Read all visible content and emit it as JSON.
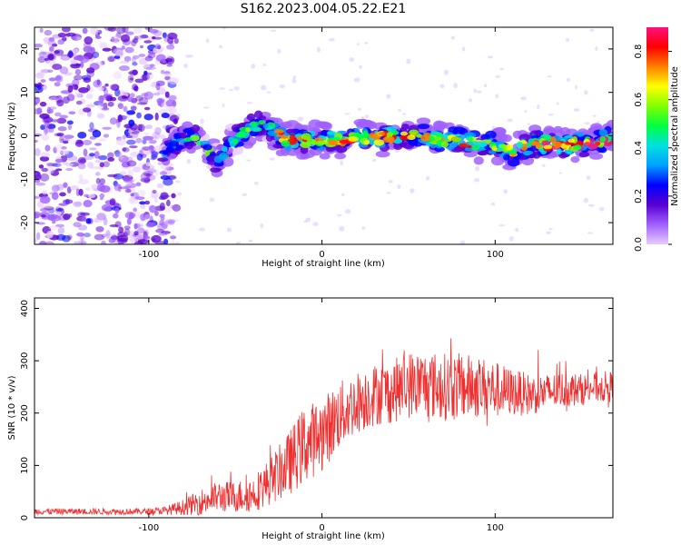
{
  "title": "S162.2023.004.05.22.E21",
  "chart_data": [
    {
      "type": "heatmap",
      "name": "spectrogram",
      "xlabel": "Height of straight line (km)",
      "ylabel": "Frequency (Hz)",
      "xlim": [
        -166,
        168
      ],
      "ylim": [
        -25,
        25
      ],
      "xticks": [
        -100,
        0,
        100
      ],
      "yticks": [
        -20,
        -10,
        0,
        10,
        20
      ],
      "colorbar": {
        "label": "Normalized spectral amplitude",
        "range": [
          0.0,
          0.9
        ],
        "ticks": [
          0.0,
          0.2,
          0.4,
          0.6,
          0.8
        ],
        "colors": [
          "#e8ccff",
          "#a060ff",
          "#5a00d0",
          "#0000ff",
          "#00a0ff",
          "#00e0e0",
          "#00ff40",
          "#80ff00",
          "#ffff00",
          "#ff8000",
          "#ff0000",
          "#ff1080"
        ]
      },
      "noise_region_x": [
        -166,
        -92
      ],
      "ridge": {
        "x": [
          -92,
          -85,
          -78,
          -70,
          -65,
          -60,
          -55,
          -50,
          -45,
          -40,
          -35,
          -30,
          -25,
          -20,
          -10,
          0,
          10,
          20,
          30,
          40,
          50,
          60,
          70,
          80,
          90,
          100,
          105,
          110,
          120,
          130,
          140,
          150,
          160,
          168
        ],
        "freq_hz": [
          -4,
          -2,
          0,
          -1,
          -4,
          -6,
          -3,
          -1,
          1,
          2,
          3,
          2,
          0,
          -1,
          -1,
          -1,
          -1,
          0,
          -1,
          0,
          0,
          0,
          -1,
          -1,
          -2,
          -2,
          -3,
          -4,
          -2,
          -2,
          -2,
          -2,
          -1,
          -1
        ],
        "amplitude": [
          0.35,
          0.45,
          0.5,
          0.45,
          0.5,
          0.5,
          0.45,
          0.45,
          0.5,
          0.55,
          0.5,
          0.55,
          0.7,
          0.8,
          0.75,
          0.7,
          0.75,
          0.72,
          0.7,
          0.72,
          0.75,
          0.72,
          0.7,
          0.75,
          0.72,
          0.6,
          0.65,
          0.7,
          0.8,
          0.85,
          0.82,
          0.85,
          0.8,
          0.85
        ]
      }
    },
    {
      "type": "line",
      "name": "snr",
      "xlabel": "Height of straight line (km)",
      "ylabel": "SNR (10 * v/v)",
      "xlim": [
        -166,
        168
      ],
      "ylim": [
        0,
        420
      ],
      "xticks": [
        -100,
        0,
        100
      ],
      "yticks": [
        0,
        100,
        200,
        300,
        400
      ],
      "color": "#f03030",
      "envelope": {
        "x": [
          -166,
          -100,
          -90,
          -80,
          -70,
          -60,
          -50,
          -40,
          -30,
          -20,
          -10,
          0,
          10,
          20,
          30,
          40,
          50,
          60,
          70,
          80,
          90,
          100,
          110,
          120,
          130,
          140,
          150,
          160,
          168
        ],
        "mean": [
          12,
          12,
          14,
          20,
          30,
          40,
          40,
          45,
          70,
          100,
          140,
          160,
          195,
          220,
          235,
          240,
          255,
          255,
          250,
          250,
          250,
          245,
          240,
          235,
          240,
          245,
          245,
          250,
          250
        ],
        "spread": [
          6,
          6,
          8,
          15,
          25,
          30,
          30,
          35,
          45,
          60,
          75,
          70,
          65,
          60,
          60,
          60,
          65,
          65,
          65,
          65,
          60,
          55,
          45,
          40,
          35,
          35,
          30,
          30,
          30
        ]
      }
    }
  ]
}
